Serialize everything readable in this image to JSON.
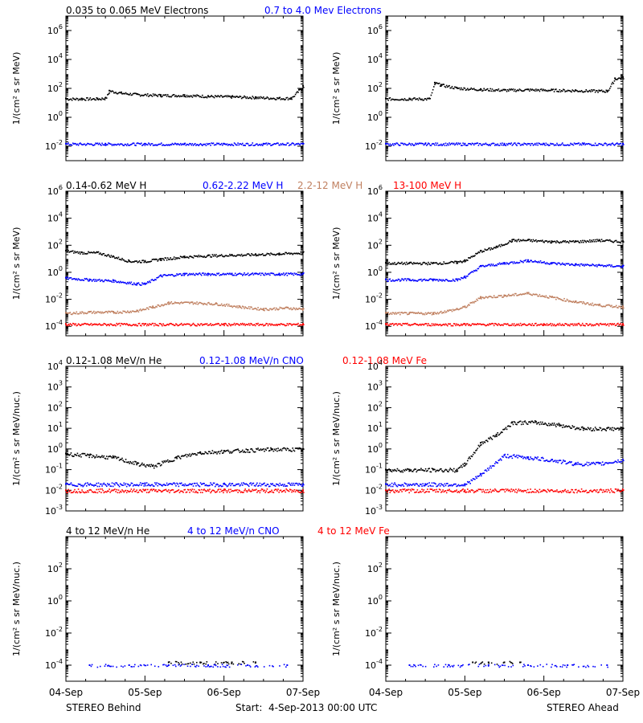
{
  "chart_data": [
    {
      "type": "scatter",
      "row_header": [
        {
          "text": "0.035 to 0.065 MeV Electrons",
          "color": "#000000"
        },
        {
          "text": "0.7 to 4.0 Mev Electrons",
          "color": "#0000ff"
        }
      ],
      "ylabel": "1/(cm² s sr MeV)",
      "yscale": "log",
      "ylim": [
        0.001,
        10000000
      ],
      "yticks": [
        {
          "base": "10",
          "exp": "6"
        },
        {
          "base": "10",
          "exp": "4"
        },
        {
          "base": "10",
          "exp": "2"
        },
        {
          "base": "10",
          "exp": "0"
        },
        {
          "base": "10",
          "exp": "-2"
        }
      ],
      "panels": [
        {
          "spacecraft": "STEREO Behind",
          "series": [
            {
              "name": "0.035 to 0.065 MeV Electrons",
              "color": "#000000",
              "x": [
                0.0,
                0.2,
                0.4,
                0.5,
                0.55,
                0.7,
                0.9,
                1.2,
                1.5,
                1.8,
                2.1,
                2.4,
                2.7,
                2.85,
                2.95,
                3.0
              ],
              "y": [
                20,
                20,
                20,
                22,
                70,
                50,
                40,
                35,
                35,
                30,
                28,
                25,
                22,
                22,
                80,
                150
              ]
            },
            {
              "name": "0.7 to 4.0 Mev Electrons",
              "color": "#0000ff",
              "x": [
                0.0,
                0.5,
                1.0,
                1.5,
                2.0,
                2.5,
                3.0
              ],
              "y": [
                0.015,
                0.015,
                0.015,
                0.015,
                0.015,
                0.015,
                0.015
              ]
            }
          ]
        },
        {
          "spacecraft": "STEREO Ahead",
          "series": [
            {
              "name": "0.035 to 0.065 MeV Electrons",
              "color": "#000000",
              "x": [
                0.0,
                0.3,
                0.55,
                0.62,
                0.7,
                0.9,
                1.2,
                1.5,
                1.8,
                2.1,
                2.4,
                2.7,
                2.8,
                2.9,
                3.0
              ],
              "y": [
                20,
                20,
                20,
                250,
                180,
                110,
                90,
                80,
                85,
                80,
                75,
                70,
                70,
                500,
                600
              ]
            },
            {
              "name": "0.7 to 4.0 Mev Electrons",
              "color": "#0000ff",
              "x": [
                0.0,
                0.5,
                1.0,
                1.5,
                2.0,
                2.5,
                3.0
              ],
              "y": [
                0.015,
                0.015,
                0.015,
                0.015,
                0.015,
                0.015,
                0.015
              ]
            }
          ]
        }
      ]
    },
    {
      "type": "scatter",
      "row_header": [
        {
          "text": "0.14-0.62 MeV H",
          "color": "#000000"
        },
        {
          "text": "0.62-2.22 MeV H",
          "color": "#0000ff"
        },
        {
          "text": "2.2-12 MeV H",
          "color": "#c08060"
        },
        {
          "text": "13-100 MeV H",
          "color": "#ff0000"
        }
      ],
      "ylabel": "1/(cm² s sr MeV)",
      "yscale": "log",
      "ylim": [
        2e-05,
        1000000
      ],
      "yticks": [
        {
          "base": "10",
          "exp": "6"
        },
        {
          "base": "10",
          "exp": "4"
        },
        {
          "base": "10",
          "exp": "2"
        },
        {
          "base": "10",
          "exp": "0"
        },
        {
          "base": "10",
          "exp": "-2"
        },
        {
          "base": "10",
          "exp": "-4"
        }
      ],
      "panels": [
        {
          "spacecraft": "STEREO Behind",
          "series": [
            {
              "name": "0.14-0.62 MeV H",
              "color": "#000000",
              "x": [
                0.0,
                0.2,
                0.4,
                0.6,
                0.8,
                1.0,
                1.2,
                1.5,
                1.8,
                2.1,
                2.4,
                2.7,
                3.0
              ],
              "y": [
                40,
                30,
                30,
                15,
                7,
                7,
                10,
                15,
                18,
                20,
                22,
                25,
                30
              ]
            },
            {
              "name": "0.62-2.22 MeV H",
              "color": "#0000ff",
              "x": [
                0.0,
                0.3,
                0.6,
                0.9,
                1.0,
                1.2,
                1.5,
                1.8,
                2.1,
                2.4,
                2.7,
                3.0
              ],
              "y": [
                0.4,
                0.3,
                0.25,
                0.15,
                0.15,
                0.6,
                0.8,
                0.8,
                0.8,
                0.8,
                0.8,
                0.8
              ]
            },
            {
              "name": "2.2-12 MeV H",
              "color": "#c08060",
              "x": [
                0.0,
                0.3,
                0.6,
                0.9,
                1.1,
                1.3,
                1.6,
                1.9,
                2.2,
                2.5,
                2.8,
                3.0
              ],
              "y": [
                0.001,
                0.0012,
                0.0012,
                0.0015,
                0.003,
                0.006,
                0.006,
                0.005,
                0.003,
                0.002,
                0.0025,
                0.002
              ]
            },
            {
              "name": "13-100 MeV H",
              "color": "#ff0000",
              "x": [
                0.0,
                1.0,
                2.0,
                3.0
              ],
              "y": [
                0.00015,
                0.00015,
                0.00015,
                0.00015
              ]
            }
          ]
        },
        {
          "spacecraft": "STEREO Ahead",
          "series": [
            {
              "name": "0.14-0.62 MeV H",
              "color": "#000000",
              "x": [
                0.0,
                0.3,
                0.6,
                0.9,
                1.0,
                1.2,
                1.4,
                1.6,
                1.8,
                2.1,
                2.4,
                2.7,
                3.0
              ],
              "y": [
                5,
                5,
                5,
                6,
                8,
                40,
                80,
                250,
                250,
                200,
                200,
                250,
                200
              ]
            },
            {
              "name": "0.62-2.22 MeV H",
              "color": "#0000ff",
              "x": [
                0.0,
                0.3,
                0.6,
                0.9,
                1.0,
                1.2,
                1.5,
                1.8,
                2.1,
                2.4,
                2.7,
                3.0
              ],
              "y": [
                0.3,
                0.3,
                0.3,
                0.3,
                0.5,
                3,
                5,
                8,
                5,
                4,
                3.5,
                3
              ]
            },
            {
              "name": "2.2-12 MeV H",
              "color": "#c08060",
              "x": [
                0.0,
                0.3,
                0.6,
                0.9,
                1.0,
                1.2,
                1.5,
                1.8,
                2.1,
                2.4,
                2.7,
                3.0
              ],
              "y": [
                0.001,
                0.001,
                0.001,
                0.002,
                0.003,
                0.015,
                0.02,
                0.03,
                0.015,
                0.007,
                0.004,
                0.003
              ]
            },
            {
              "name": "13-100 MeV H",
              "color": "#ff0000",
              "x": [
                0.0,
                1.0,
                2.0,
                3.0
              ],
              "y": [
                0.00015,
                0.00015,
                0.00015,
                0.00015
              ]
            }
          ]
        }
      ]
    },
    {
      "type": "scatter",
      "row_header": [
        {
          "text": "0.12-1.08 MeV/n He",
          "color": "#000000"
        },
        {
          "text": "0.12-1.08 MeV/n CNO",
          "color": "#0000ff"
        },
        {
          "text": "0.12-1.08 MeV Fe",
          "color": "#ff0000"
        }
      ],
      "ylabel": "1/(cm² s sr MeV/nuc.)",
      "yscale": "log",
      "ylim": [
        0.001,
        10000
      ],
      "yticks": [
        {
          "base": "10",
          "exp": "4"
        },
        {
          "base": "10",
          "exp": "3"
        },
        {
          "base": "10",
          "exp": "2"
        },
        {
          "base": "10",
          "exp": "1"
        },
        {
          "base": "10",
          "exp": "0"
        },
        {
          "base": "10",
          "exp": "-1"
        },
        {
          "base": "10",
          "exp": "-2"
        },
        {
          "base": "10",
          "exp": "-3"
        }
      ],
      "panels": [
        {
          "spacecraft": "STEREO Behind",
          "series": [
            {
              "name": "0.12-1.08 MeV/n He",
              "color": "#000000",
              "x": [
                0.0,
                0.3,
                0.6,
                0.9,
                1.1,
                1.4,
                1.7,
                2.0,
                2.3,
                2.6,
                3.0
              ],
              "y": [
                0.6,
                0.5,
                0.4,
                0.2,
                0.15,
                0.4,
                0.7,
                0.8,
                0.9,
                1.0,
                1.0
              ]
            },
            {
              "name": "0.12-1.08 MeV/n CNO",
              "color": "#0000ff",
              "x": [
                0.0,
                1.0,
                2.0,
                3.0
              ],
              "y": [
                0.02,
                0.02,
                0.02,
                0.02
              ]
            },
            {
              "name": "0.12-1.08 MeV Fe",
              "color": "#ff0000",
              "x": [
                0.0,
                1.0,
                2.0,
                3.0
              ],
              "y": [
                0.01,
                0.01,
                0.01,
                0.01
              ]
            }
          ]
        },
        {
          "spacecraft": "STEREO Ahead",
          "series": [
            {
              "name": "0.12-1.08 MeV/n He",
              "color": "#000000",
              "x": [
                0.0,
                0.3,
                0.6,
                0.9,
                1.0,
                1.2,
                1.4,
                1.6,
                1.9,
                2.2,
                2.5,
                2.8,
                3.0
              ],
              "y": [
                0.1,
                0.1,
                0.1,
                0.1,
                0.2,
                2,
                5,
                20,
                20,
                15,
                10,
                10,
                10
              ]
            },
            {
              "name": "0.12-1.08 MeV/n CNO",
              "color": "#0000ff",
              "x": [
                0.0,
                0.5,
                1.0,
                1.2,
                1.5,
                1.8,
                2.1,
                2.4,
                2.7,
                3.0
              ],
              "y": [
                0.02,
                0.02,
                0.02,
                0.06,
                0.5,
                0.4,
                0.3,
                0.2,
                0.2,
                0.3
              ]
            },
            {
              "name": "0.12-1.08 MeV Fe",
              "color": "#ff0000",
              "x": [
                0.0,
                1.0,
                2.0,
                3.0
              ],
              "y": [
                0.01,
                0.01,
                0.01,
                0.01
              ]
            }
          ]
        }
      ]
    },
    {
      "type": "scatter",
      "row_header": [
        {
          "text": "4 to 12 MeV/n He",
          "color": "#000000"
        },
        {
          "text": "4 to 12 MeV/n CNO",
          "color": "#0000ff"
        },
        {
          "text": "4 to 12 MeV Fe",
          "color": "#ff0000"
        }
      ],
      "ylabel": "1/(cm² s sr MeV/nuc.)",
      "yscale": "log",
      "ylim": [
        1e-05,
        10000
      ],
      "yticks": [
        {
          "base": "10",
          "exp": "2"
        },
        {
          "base": "10",
          "exp": "0"
        },
        {
          "base": "10",
          "exp": "-2"
        },
        {
          "base": "10",
          "exp": "-4"
        }
      ],
      "panels": [
        {
          "spacecraft": "STEREO Behind",
          "series": [
            {
              "name": "4 to 12 MeV/n He",
              "color": "#000000",
              "x": [
                1.3,
                1.7,
                2.1,
                2.4
              ],
              "y": [
                0.00015,
                0.00015,
                0.00015,
                0.00015
              ]
            },
            {
              "name": "4 to 12 MeV/n CNO",
              "color": "#0000ff",
              "x": [
                0.3,
                0.8,
                1.3,
                1.8,
                2.3,
                2.8
              ],
              "y": [
                0.0001,
                0.0001,
                0.0001,
                0.0001,
                0.0001,
                0.0001
              ]
            },
            {
              "name": "4 to 12 MeV Fe",
              "color": "#ff0000",
              "x": [],
              "y": []
            }
          ]
        },
        {
          "spacecraft": "STEREO Ahead",
          "series": [
            {
              "name": "4 to 12 MeV/n He",
              "color": "#000000",
              "x": [
                1.1,
                1.3,
                1.5,
                1.7
              ],
              "y": [
                0.00015,
                0.00015,
                0.00015,
                0.00015
              ]
            },
            {
              "name": "4 to 12 MeV/n CNO",
              "color": "#0000ff",
              "x": [
                0.3,
                0.8,
                1.3,
                1.8,
                2.3,
                2.8
              ],
              "y": [
                0.0001,
                0.0001,
                0.0001,
                0.0001,
                0.0001,
                0.0001
              ]
            },
            {
              "name": "4 to 12 MeV Fe",
              "color": "#ff0000",
              "x": [],
              "y": []
            }
          ]
        }
      ]
    }
  ],
  "xaxis": {
    "xlim": [
      0,
      3
    ],
    "ticks": [
      {
        "value": 0,
        "label": "04-Sep"
      },
      {
        "value": 1,
        "label": "05-Sep"
      },
      {
        "value": 2,
        "label": "06-Sep"
      },
      {
        "value": 3,
        "label": "07-Sep"
      }
    ]
  },
  "footer": {
    "left": "STEREO Behind",
    "center": "Start:  4-Sep-2013 00:00 UTC",
    "right": "STEREO Ahead"
  }
}
